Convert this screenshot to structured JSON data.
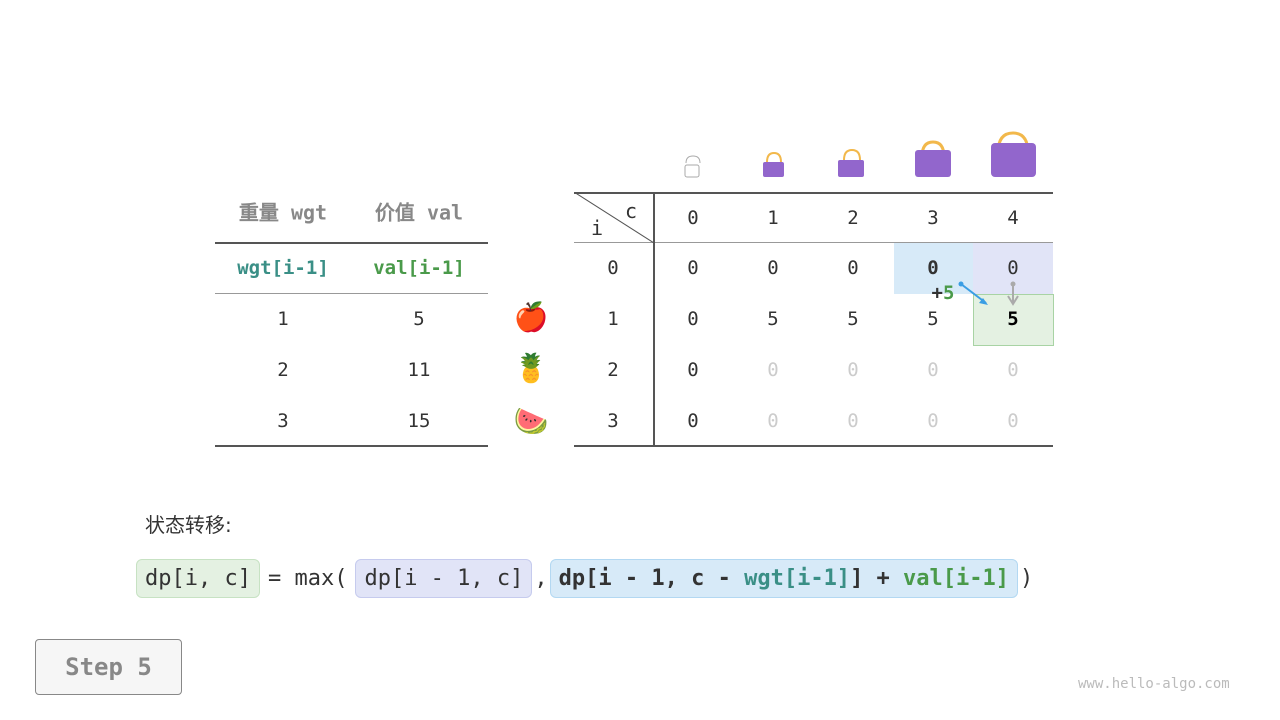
{
  "left_table": {
    "headers": [
      "重量 wgt",
      "价值 val"
    ],
    "subheaders": [
      "wgt[i-1]",
      "val[i-1]"
    ],
    "rows": [
      [
        "1",
        "5"
      ],
      [
        "2",
        "11"
      ],
      [
        "3",
        "15"
      ]
    ]
  },
  "items": [
    {
      "icon": "apple-icon",
      "glyph": "🍎"
    },
    {
      "icon": "pineapple-icon",
      "glyph": "🍍"
    },
    {
      "icon": "watermelon-icon",
      "glyph": "🍉"
    }
  ],
  "dp_table": {
    "corner_c": "c",
    "corner_i": "i",
    "capacities": [
      "0",
      "1",
      "2",
      "3",
      "4"
    ],
    "rows": [
      {
        "i": "0",
        "vals": [
          "0",
          "0",
          "0",
          "0",
          "0"
        ]
      },
      {
        "i": "1",
        "vals": [
          "0",
          "5",
          "5",
          "5",
          "5"
        ]
      },
      {
        "i": "2",
        "vals": [
          "0",
          "0",
          "0",
          "0",
          "0"
        ]
      },
      {
        "i": "3",
        "vals": [
          "0",
          "0",
          "0",
          "0",
          "0"
        ]
      }
    ]
  },
  "annotation": {
    "plus": "+",
    "value": "5"
  },
  "transition": {
    "label": "状态转移:",
    "lhs": "dp[i, c]",
    "eq": "= max(",
    "opt1": "dp[i - 1, c]",
    "comma": ",",
    "opt2_a": "dp[i - 1, c - ",
    "opt2_wgt": "wgt[i-1]",
    "opt2_b": "] + ",
    "opt2_val": "val[i-1]",
    "close": ")"
  },
  "step_button": "Step 5",
  "watermark": "www.hello-algo.com",
  "colors": {
    "teal": "#3a8f86",
    "green": "#4a9a4a",
    "bag": "#9266cc",
    "blue_cell": "#d7eaf8",
    "lavender_cell": "#e1e4f7",
    "green_cell": "#e4f1e2"
  }
}
